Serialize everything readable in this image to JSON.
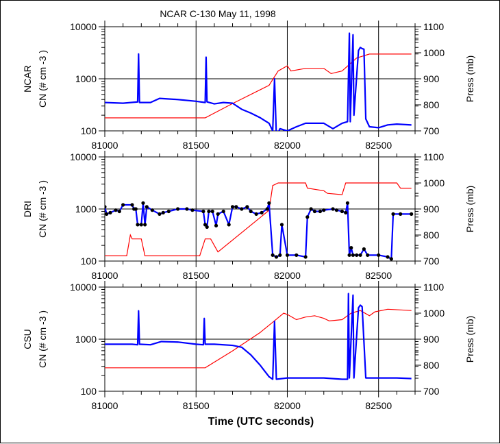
{
  "title": "NCAR C-130 May 11, 1998",
  "xlabel": "Time (UTC seconds)",
  "x_ticks": [
    "81000",
    "81500",
    "82000",
    "82500"
  ],
  "left_ticks": [
    "10000",
    "1000",
    "100"
  ],
  "right_ticks": [
    "1100",
    "1000",
    "900",
    "800",
    "700"
  ],
  "colors": {
    "cn": "#0000ff",
    "pressure": "#ff0000",
    "dri_points": "#000000",
    "grid": "#000000"
  },
  "chart_data": [
    {
      "type": "line",
      "instrument": "NCAR",
      "ylabel": "CN (# cm  -3 )",
      "y2label": "Press (mb)",
      "xlim": [
        81000,
        82700
      ],
      "ylim": [
        100,
        10000
      ],
      "yscale": "log",
      "y2lim": [
        700,
        1100
      ],
      "grid": true,
      "series": [
        {
          "values": [
            [
              81000,
              350
            ],
            [
              81100,
              340
            ],
            [
              81180,
              360
            ],
            [
              81185,
              3000
            ],
            [
              81190,
              350
            ],
            [
              81250,
              350
            ],
            [
              81300,
              420
            ],
            [
              81400,
              400
            ],
            [
              81500,
              370
            ],
            [
              81550,
              350
            ],
            [
              81555,
              2600
            ],
            [
              81560,
              360
            ],
            [
              81600,
              330
            ],
            [
              81650,
              350
            ],
            [
              81700,
              340
            ],
            [
              81750,
              260
            ],
            [
              81800,
              220
            ],
            [
              81850,
              180
            ],
            [
              81900,
              140
            ],
            [
              81920,
              100
            ],
            [
              81930,
              1000
            ],
            [
              81940,
              80
            ],
            [
              81960,
              110
            ],
            [
              82000,
              100
            ],
            [
              82050,
              120
            ],
            [
              82100,
              140
            ],
            [
              82200,
              140
            ],
            [
              82250,
              110
            ],
            [
              82300,
              140
            ],
            [
              82330,
              150
            ],
            [
              82340,
              7500
            ],
            [
              82345,
              150
            ],
            [
              82360,
              7000
            ],
            [
              82365,
              200
            ],
            [
              82390,
              3500
            ],
            [
              82400,
              4000
            ],
            [
              82410,
              3800
            ],
            [
              82420,
              3700
            ],
            [
              82430,
              170
            ],
            [
              82450,
              120
            ],
            [
              82500,
              115
            ],
            [
              82550,
              130
            ],
            [
              82600,
              135
            ],
            [
              82680,
              130
            ]
          ]
        },
        {
          "values": [
            [
              81000,
              750
            ],
            [
              81550,
              750
            ],
            [
              81700,
              805
            ],
            [
              81900,
              875
            ],
            [
              81950,
              930
            ],
            [
              82000,
              950
            ],
            [
              82020,
              930
            ],
            [
              82100,
              940
            ],
            [
              82200,
              940
            ],
            [
              82240,
              920
            ],
            [
              82300,
              930
            ],
            [
              82380,
              980
            ],
            [
              82450,
              995
            ],
            [
              82680,
              995
            ]
          ]
        }
      ]
    },
    {
      "type": "line",
      "instrument": "DRI",
      "ylabel": "CN (# cm  -3 )",
      "y2label": "Press (mb)",
      "xlim": [
        81000,
        82700
      ],
      "ylim": [
        100,
        10000
      ],
      "yscale": "log",
      "y2lim": [
        700,
        1100
      ],
      "grid": true,
      "series": [
        {
          "values": [
            [
              81000,
              1100
            ],
            [
              81010,
              800
            ],
            [
              81030,
              850
            ],
            [
              81060,
              950
            ],
            [
              81080,
              900
            ],
            [
              81100,
              1200
            ],
            [
              81150,
              1200
            ],
            [
              81160,
              1000
            ],
            [
              81170,
              1000
            ],
            [
              81180,
              500
            ],
            [
              81200,
              500
            ],
            [
              81210,
              1300
            ],
            [
              81220,
              500
            ],
            [
              81230,
              1100
            ],
            [
              81260,
              950
            ],
            [
              81300,
              800
            ],
            [
              81320,
              850
            ],
            [
              81350,
              900
            ],
            [
              81400,
              1000
            ],
            [
              81450,
              1000
            ],
            [
              81480,
              950
            ],
            [
              81540,
              900
            ],
            [
              81550,
              500
            ],
            [
              81560,
              450
            ],
            [
              81570,
              900
            ],
            [
              81590,
              900
            ],
            [
              81610,
              480
            ],
            [
              81620,
              800
            ],
            [
              81650,
              900
            ],
            [
              81680,
              500
            ],
            [
              81700,
              1100
            ],
            [
              81720,
              1100
            ],
            [
              81750,
              1000
            ],
            [
              81780,
              1100
            ],
            [
              81800,
              900
            ],
            [
              81830,
              800
            ],
            [
              81860,
              850
            ],
            [
              81890,
              1000
            ],
            [
              81900,
              1300
            ],
            [
              81920,
              130
            ],
            [
              81940,
              120
            ],
            [
              81960,
              130
            ],
            [
              81970,
              500
            ],
            [
              82000,
              130
            ],
            [
              82050,
              130
            ],
            [
              82100,
              120
            ],
            [
              82110,
              700
            ],
            [
              82130,
              1000
            ],
            [
              82150,
              900
            ],
            [
              82180,
              900
            ],
            [
              82200,
              950
            ],
            [
              82250,
              1000
            ],
            [
              82270,
              950
            ],
            [
              82300,
              900
            ],
            [
              82320,
              850
            ],
            [
              82330,
              1300
            ],
            [
              82340,
              130
            ],
            [
              82350,
              180
            ],
            [
              82360,
              130
            ],
            [
              82380,
              130
            ],
            [
              82400,
              130
            ],
            [
              82420,
              170
            ],
            [
              82440,
              130
            ],
            [
              82500,
              130
            ],
            [
              82550,
              120
            ],
            [
              82570,
              110
            ],
            [
              82580,
              800
            ],
            [
              82620,
              800
            ],
            [
              82680,
              800
            ]
          ]
        },
        {
          "values": [
            [
              81000,
              720
            ],
            [
              81120,
              720
            ],
            [
              81140,
              800
            ],
            [
              81150,
              785
            ],
            [
              81200,
              785
            ],
            [
              81220,
              720
            ],
            [
              81520,
              720
            ],
            [
              81550,
              785
            ],
            [
              81580,
              785
            ],
            [
              81620,
              735
            ],
            [
              81900,
              895
            ],
            [
              81920,
              990
            ],
            [
              81950,
              1000
            ],
            [
              82100,
              1000
            ],
            [
              82110,
              980
            ],
            [
              82200,
              970
            ],
            [
              82220,
              960
            ],
            [
              82300,
              955
            ],
            [
              82320,
              1000
            ],
            [
              82600,
              1000
            ],
            [
              82620,
              980
            ],
            [
              82680,
              980
            ]
          ]
        }
      ]
    },
    {
      "type": "line",
      "instrument": "CSU",
      "ylabel": "CN (# cm  -3 )",
      "y2label": "Press (mb)",
      "xlim": [
        81000,
        82700
      ],
      "ylim": [
        100,
        10000
      ],
      "yscale": "log",
      "y2lim": [
        700,
        1100
      ],
      "grid": true,
      "series": [
        {
          "values": [
            [
              81000,
              800
            ],
            [
              81150,
              800
            ],
            [
              81180,
              780
            ],
            [
              81185,
              3500
            ],
            [
              81190,
              800
            ],
            [
              81250,
              780
            ],
            [
              81310,
              900
            ],
            [
              81400,
              880
            ],
            [
              81500,
              800
            ],
            [
              81540,
              780
            ],
            [
              81545,
              2500
            ],
            [
              81550,
              800
            ],
            [
              81600,
              800
            ],
            [
              81700,
              760
            ],
            [
              81750,
              700
            ],
            [
              81800,
              500
            ],
            [
              81850,
              320
            ],
            [
              81900,
              190
            ],
            [
              81920,
              170
            ],
            [
              81930,
              2200
            ],
            [
              81940,
              170
            ],
            [
              82000,
              180
            ],
            [
              82100,
              180
            ],
            [
              82200,
              180
            ],
            [
              82300,
              170
            ],
            [
              82330,
              170
            ],
            [
              82335,
              7500
            ],
            [
              82340,
              180
            ],
            [
              82360,
              7000
            ],
            [
              82365,
              180
            ],
            [
              82390,
              4000
            ],
            [
              82400,
              4500
            ],
            [
              82410,
              4200
            ],
            [
              82430,
              180
            ],
            [
              82500,
              180
            ],
            [
              82600,
              180
            ],
            [
              82680,
              175
            ]
          ]
        },
        {
          "values": [
            [
              81000,
              790
            ],
            [
              81550,
              790
            ],
            [
              81700,
              855
            ],
            [
              81850,
              925
            ],
            [
              81920,
              965
            ],
            [
              81980,
              1000
            ],
            [
              82000,
              995
            ],
            [
              82050,
              975
            ],
            [
              82100,
              985
            ],
            [
              82150,
              990
            ],
            [
              82200,
              980
            ],
            [
              82230,
              970
            ],
            [
              82300,
              975
            ],
            [
              82350,
              1000
            ],
            [
              82400,
              1010
            ],
            [
              82450,
              990
            ],
            [
              82480,
              1005
            ],
            [
              82550,
              1015
            ],
            [
              82680,
              1010
            ]
          ]
        }
      ]
    }
  ]
}
